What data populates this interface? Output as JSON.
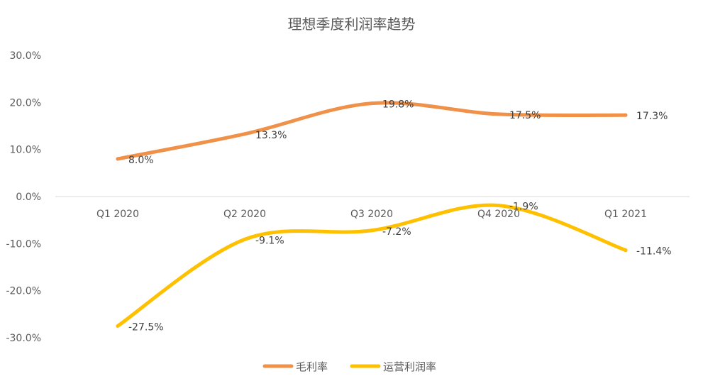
{
  "chart_data": {
    "type": "line",
    "title": "理想季度利润率趋势",
    "categories": [
      "Q1 2020",
      "Q2 2020",
      "Q3 2020",
      "Q4 2020",
      "Q1 2021"
    ],
    "ylim": [
      -30,
      30
    ],
    "y_ticks": [
      30,
      20,
      10,
      0,
      -10,
      -20,
      -30
    ],
    "y_tick_labels": [
      "30.0%",
      "20.0%",
      "10.0%",
      "0.0%",
      "-10.0%",
      "-20.0%",
      "-30.0%"
    ],
    "grid": false,
    "smooth": true,
    "legend_position": "bottom",
    "series": [
      {
        "name": "毛利率",
        "color": "#F0914A",
        "values": [
          8.0,
          13.3,
          19.8,
          17.5,
          17.3
        ],
        "labels": [
          "8.0%",
          "13.3%",
          "19.8%",
          "17.5%",
          "17.3%"
        ]
      },
      {
        "name": "运营利润率",
        "color": "#FFC000",
        "values": [
          -27.5,
          -9.1,
          -7.2,
          -1.9,
          -11.4
        ],
        "labels": [
          "-27.5%",
          "-9.1%",
          "-7.2%",
          "-1.9%",
          "-11.4%"
        ]
      }
    ]
  }
}
